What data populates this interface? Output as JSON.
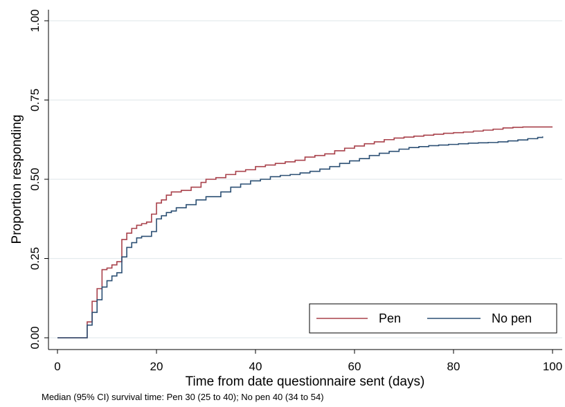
{
  "chart_data": {
    "type": "line",
    "title": "",
    "xlabel": "Time from date questionnaire sent (days)",
    "ylabel": "Proportion responding",
    "xlim": [
      0,
      100
    ],
    "ylim": [
      0,
      1
    ],
    "x_ticks": [
      0,
      20,
      40,
      60,
      80,
      100
    ],
    "x_tick_labels": [
      "0",
      "20",
      "40",
      "60",
      "80",
      "100"
    ],
    "y_ticks": [
      0,
      0.25,
      0.5,
      0.75,
      1
    ],
    "y_tick_labels": [
      "0.00",
      "0.25",
      "0.50",
      "0.75",
      "1.00"
    ],
    "grid": true,
    "legend_position": "bottom-right",
    "series": [
      {
        "name": "Pen",
        "color": "#a8404a",
        "x": [
          0,
          6,
          7,
          8,
          9,
          10,
          11,
          12,
          13,
          14,
          15,
          16,
          17,
          18,
          19,
          20,
          21,
          22,
          23,
          25,
          27,
          29,
          30,
          32,
          34,
          36,
          38,
          40,
          42,
          44,
          46,
          48,
          50,
          52,
          54,
          56,
          58,
          60,
          62,
          64,
          66,
          68,
          70,
          72,
          74,
          76,
          78,
          80,
          82,
          84,
          86,
          88,
          90,
          92,
          94,
          96,
          98,
          100
        ],
        "values": [
          0,
          0.05,
          0.115,
          0.155,
          0.215,
          0.22,
          0.23,
          0.24,
          0.31,
          0.33,
          0.345,
          0.355,
          0.36,
          0.365,
          0.39,
          0.425,
          0.435,
          0.45,
          0.46,
          0.465,
          0.475,
          0.49,
          0.5,
          0.505,
          0.515,
          0.525,
          0.53,
          0.54,
          0.545,
          0.55,
          0.555,
          0.56,
          0.57,
          0.575,
          0.58,
          0.59,
          0.598,
          0.605,
          0.612,
          0.618,
          0.625,
          0.63,
          0.633,
          0.636,
          0.639,
          0.642,
          0.645,
          0.647,
          0.649,
          0.652,
          0.655,
          0.658,
          0.662,
          0.664,
          0.665,
          0.665,
          0.665,
          0.665
        ]
      },
      {
        "name": "No pen",
        "color": "#2b4f73",
        "x": [
          0,
          6,
          7,
          8,
          9,
          10,
          11,
          12,
          13,
          14,
          15,
          16,
          17,
          19,
          20,
          21,
          22,
          23,
          24,
          26,
          28,
          30,
          33,
          35,
          37,
          39,
          41,
          43,
          45,
          47,
          49,
          51,
          53,
          55,
          57,
          59,
          61,
          63,
          65,
          67,
          69,
          71,
          73,
          75,
          77,
          79,
          81,
          83,
          85,
          87,
          89,
          91,
          93,
          95,
          97,
          98
        ],
        "values": [
          0,
          0.04,
          0.08,
          0.12,
          0.16,
          0.18,
          0.195,
          0.205,
          0.255,
          0.285,
          0.3,
          0.315,
          0.32,
          0.335,
          0.375,
          0.385,
          0.395,
          0.4,
          0.41,
          0.42,
          0.435,
          0.445,
          0.46,
          0.475,
          0.485,
          0.495,
          0.5,
          0.508,
          0.512,
          0.515,
          0.52,
          0.525,
          0.532,
          0.54,
          0.55,
          0.558,
          0.565,
          0.575,
          0.582,
          0.588,
          0.595,
          0.6,
          0.603,
          0.606,
          0.608,
          0.61,
          0.612,
          0.614,
          0.615,
          0.616,
          0.618,
          0.621,
          0.624,
          0.628,
          0.632,
          0.635
        ]
      }
    ],
    "footnote": "Median (95% CI) survival time: Pen 30 (25 to 40); No pen 40 (34 to 54)"
  }
}
